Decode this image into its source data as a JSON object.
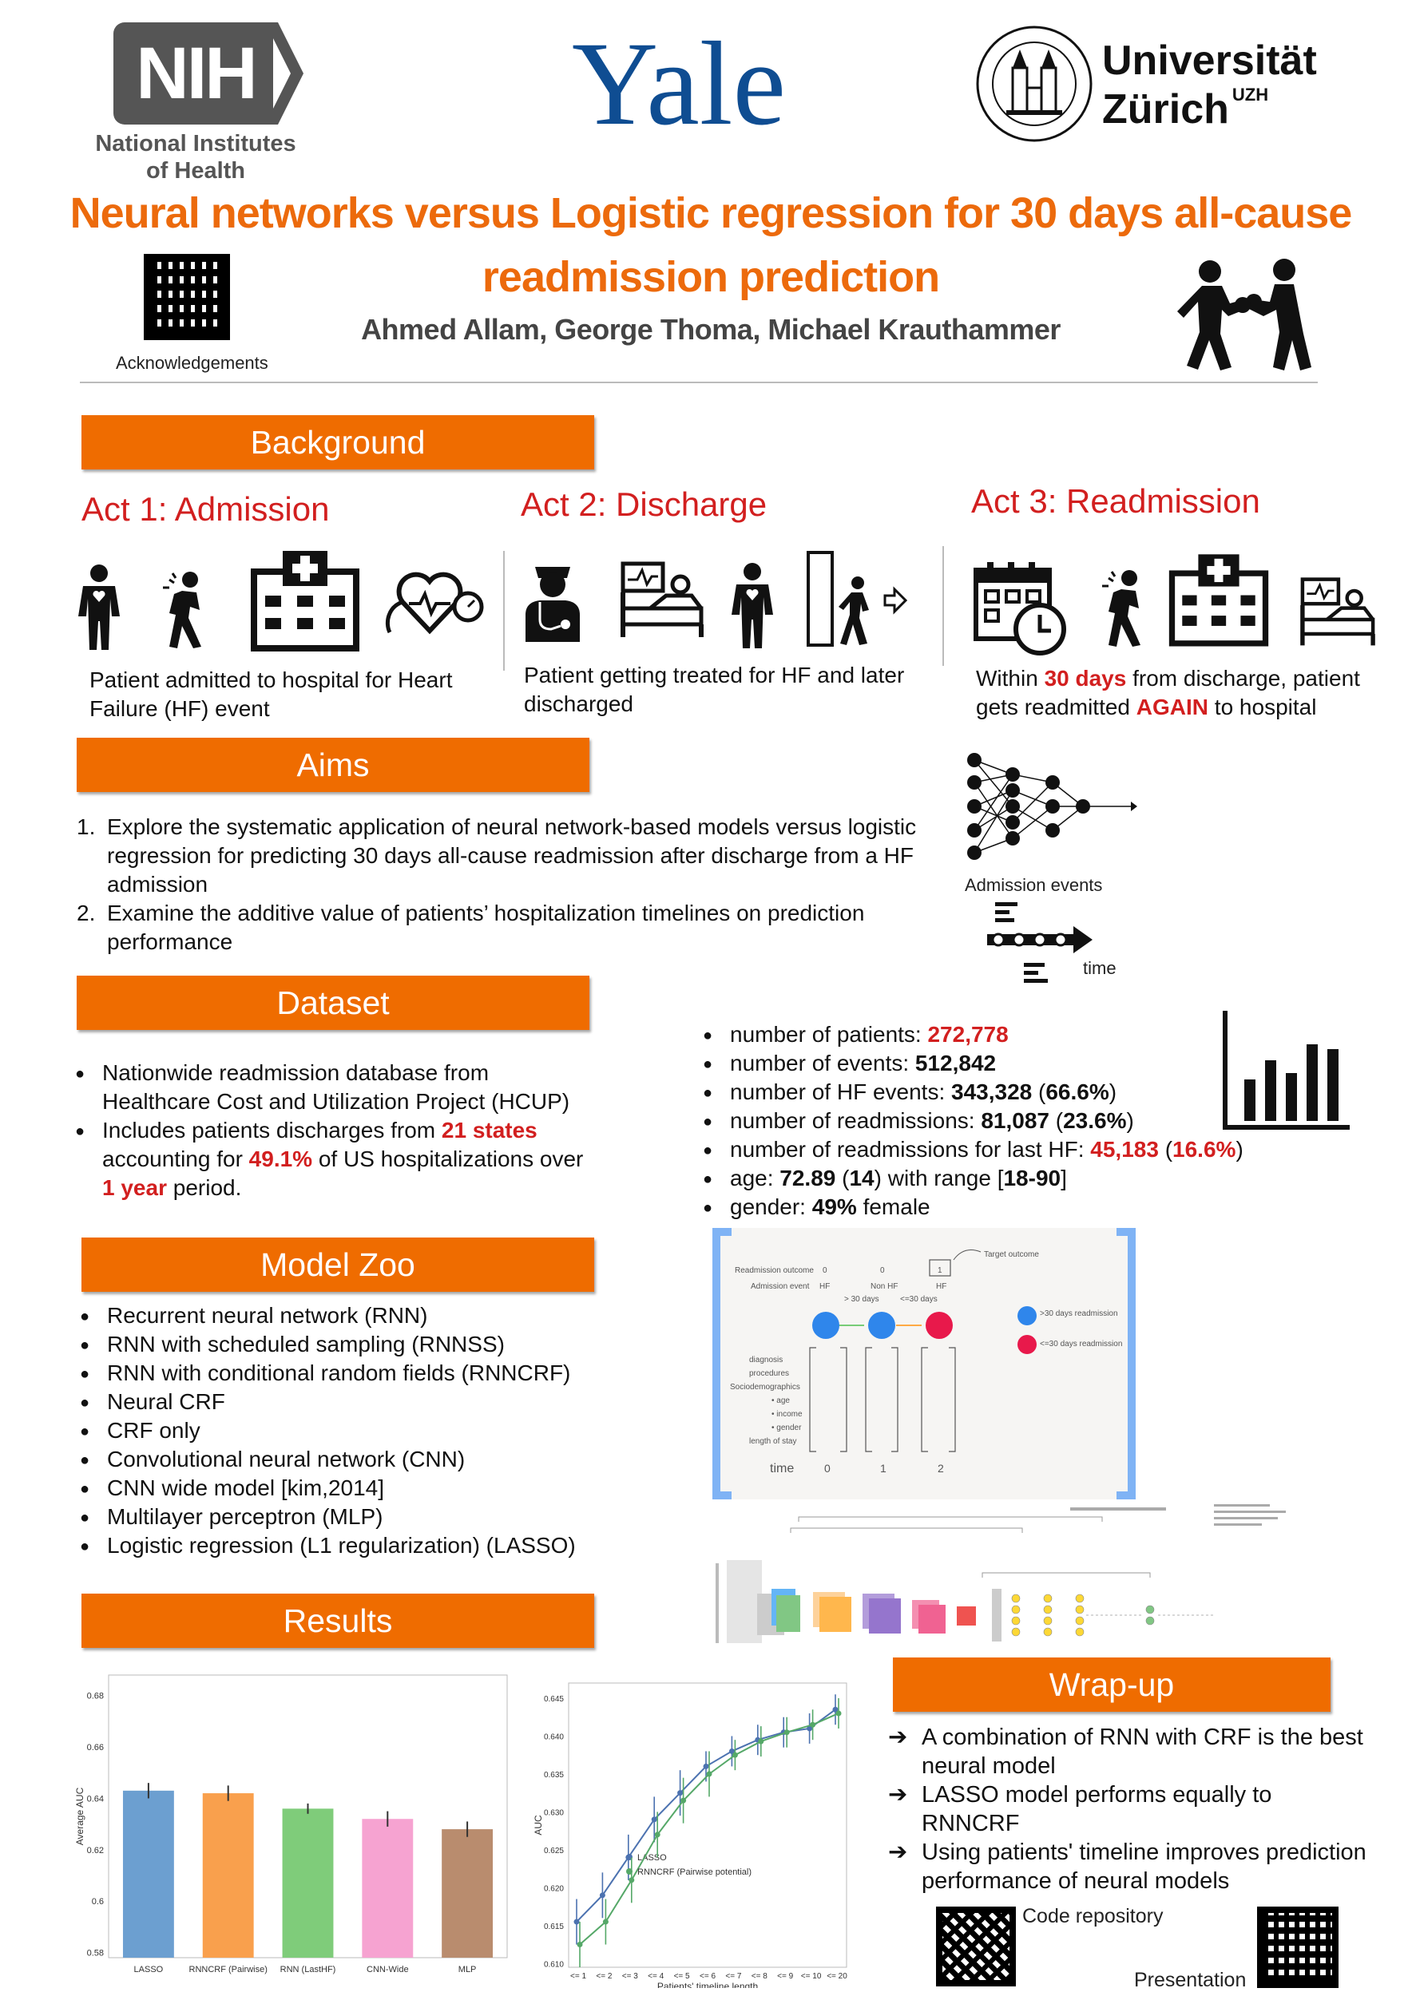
{
  "logos": {
    "nih_mark": "NIH",
    "nih_line1": "National Institutes",
    "nih_line2": "of Health",
    "yale": "Yale",
    "uzh_line1": "Universität",
    "uzh_line2": "Zürich",
    "uzh_sup": "UZH"
  },
  "header": {
    "title_line1": "Neural networks versus Logistic regression for 30 days all-cause",
    "title_line2": "readmission prediction",
    "authors": "Ahmed Allam, George Thoma, Michael Krauthammer",
    "acknowledgements": "Acknowledgements"
  },
  "background": {
    "heading": "Background",
    "act1": {
      "title": "Act 1: Admission",
      "desc": "Patient admitted to hospital for Heart Failure (HF) event"
    },
    "act2": {
      "title": "Act 2: Discharge",
      "desc": "Patient getting treated for HF and later discharged"
    },
    "act3": {
      "title": "Act 3: Readmission",
      "desc_pre": "Within ",
      "desc_hl1": "30 days",
      "desc_mid": " from discharge, patient gets readmitted ",
      "desc_hl2": "AGAIN",
      "desc_post": " to hospital"
    }
  },
  "aims": {
    "heading": "Aims",
    "items": [
      {
        "num": "1.",
        "text": "Explore the systematic application of neural network-based models versus logistic regression for predicting 30 days all-cause readmission after discharge from a HF admission"
      },
      {
        "num": "2.",
        "text": "Examine the additive value of patients’ hospitalization timelines on prediction performance"
      }
    ],
    "admission_events": "Admission events",
    "time_label": "time"
  },
  "dataset": {
    "heading": "Dataset",
    "left": [
      {
        "pre": "Nationwide readmission database from Healthcare Cost and Utilization Project (HCUP)"
      },
      {
        "pre": "Includes patients discharges from ",
        "hl1": "21 states",
        "mid1": " accounting for ",
        "hl2": "49.1%",
        "mid2": " of US hospitalizations over ",
        "hl3": "1 year",
        "post": " period."
      }
    ],
    "stats": [
      {
        "label": "number of patients: ",
        "value": "272,778",
        "extra": ""
      },
      {
        "label": "number of events: ",
        "value": "512,842",
        "extra": ""
      },
      {
        "label": "number of HF events: ",
        "value": "343,328",
        "extra": "66.6%"
      },
      {
        "label": "number of readmissions: ",
        "value": "81,087",
        "extra": "23.6%"
      },
      {
        "label": "number of readmissions for last HF: ",
        "value": "45,183",
        "extra": "16.6%"
      },
      {
        "label": "age: ",
        "value": "72.89",
        "extra": "14",
        "range": "18-90"
      },
      {
        "label": "gender: ",
        "value": "49%",
        "suffix": " female"
      }
    ]
  },
  "timeline_figure": {
    "readmission_outcome": "Readmission outcome",
    "admission_event": "Admission event",
    "outcomes": [
      "0",
      "0",
      "1"
    ],
    "events": [
      "HF",
      "Non HF",
      "HF"
    ],
    "gap1": "> 30 days",
    "gap2": "<=30 days",
    "target": "Target outcome",
    "legend_blue": ">30 days readmission",
    "legend_red": "<=30 days readmission",
    "features": [
      "diagnosis",
      "procedures",
      "Sociodemographics",
      "• age",
      "• income",
      "• gender",
      "length of stay"
    ],
    "time": "time",
    "ticks": [
      "0",
      "1",
      "2"
    ]
  },
  "model_zoo": {
    "heading": "Model Zoo",
    "items": [
      "Recurrent neural network (RNN)",
      "RNN with scheduled sampling (RNNSS)",
      "RNN with conditional random fields (RNNCRF)",
      "Neural CRF",
      "CRF only",
      "Convolutional neural network (CNN)",
      "CNN wide model [kim,2014]",
      "Multilayer perceptron (MLP)",
      "Logistic regression (L1 regularization) (LASSO)"
    ]
  },
  "results": {
    "heading": "Results"
  },
  "wrapup": {
    "heading": "Wrap-up",
    "items": [
      "A combination of RNN with CRF is the best neural model",
      "LASSO model performs equally to RNNCRF",
      "Using patients' timeline improves prediction performance of neural models"
    ],
    "code_repo": "Code repository",
    "presentation": "Presentation"
  },
  "chart_data": [
    {
      "type": "bar",
      "ylabel": "Average AUC",
      "categories": [
        "LASSO",
        "RNNCRF (Pairwise)",
        "RNN (LastHF)",
        "CNN-Wide",
        "MLP"
      ],
      "values": [
        0.643,
        0.642,
        0.636,
        0.632,
        0.628
      ],
      "errors": [
        0.003,
        0.003,
        0.002,
        0.003,
        0.003
      ],
      "colors": [
        "#6c9fd0",
        "#f9a04d",
        "#7fcc7a",
        "#f6a3d1",
        "#b98c6e"
      ],
      "ylim": [
        0.578,
        0.688
      ],
      "yticks": [
        "0.58",
        "0.6",
        "0.62",
        "0.64",
        "0.66",
        "0.68"
      ],
      "ytick_values": [
        0.58,
        0.6,
        0.62,
        0.64,
        0.66,
        0.68
      ]
    },
    {
      "type": "line",
      "xlabel": "Patients' timeline length",
      "ylabel": "AUC",
      "categories": [
        "<= 1",
        "<= 2",
        "<= 3",
        "<= 4",
        "<= 5",
        "<= 6",
        "<= 7",
        "<= 8",
        "<= 9",
        "<= 10",
        "<= 20"
      ],
      "series": [
        {
          "name": "LASSO",
          "color": "#4c72b0",
          "values": [
            0.6155,
            0.619,
            0.624,
            0.629,
            0.6325,
            0.636,
            0.638,
            0.6395,
            0.6405,
            0.641,
            0.6435
          ],
          "errors": [
            0.003,
            0.003,
            0.003,
            0.003,
            0.003,
            0.002,
            0.002,
            0.002,
            0.002,
            0.002,
            0.002
          ]
        },
        {
          "name": "RNNCRF (Pairwise potential)",
          "color": "#55a868",
          "values": [
            0.6125,
            0.6155,
            0.621,
            0.627,
            0.6315,
            0.635,
            0.6375,
            0.6393,
            0.6405,
            0.6415,
            0.643
          ],
          "errors": [
            0.003,
            0.003,
            0.003,
            0.003,
            0.003,
            0.003,
            0.002,
            0.002,
            0.002,
            0.002,
            0.002
          ]
        }
      ],
      "ylim": [
        0.6095,
        0.647
      ],
      "yticks": [
        "0.610",
        "0.615",
        "0.620",
        "0.625",
        "0.630",
        "0.635",
        "0.640",
        "0.645"
      ],
      "ytick_values": [
        0.61,
        0.615,
        0.62,
        0.625,
        0.63,
        0.635,
        0.64,
        0.645
      ]
    }
  ]
}
